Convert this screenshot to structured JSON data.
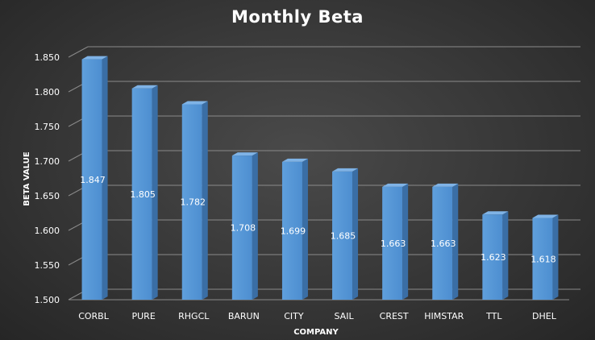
{
  "chart_data": {
    "type": "bar",
    "title": "Monthly Beta",
    "xlabel": "COMPANY",
    "ylabel": "BETA VALUE",
    "categories": [
      "CORBL",
      "PURE",
      "RHGCL",
      "BARUN",
      "CITY",
      "SAIL",
      "CREST",
      "HIMSTAR",
      "TTL",
      "DHEL"
    ],
    "values": [
      1.847,
      1.805,
      1.782,
      1.708,
      1.699,
      1.685,
      1.663,
      1.663,
      1.623,
      1.618
    ],
    "data_labels": [
      "1.847",
      "1.805",
      "1.782",
      "1.708",
      "1.699",
      "1.685",
      "1.663",
      "1.663",
      "1.623",
      "1.618"
    ],
    "ylim": [
      1.5,
      1.85
    ],
    "yticks": [
      "1.500",
      "1.550",
      "1.600",
      "1.650",
      "1.700",
      "1.750",
      "1.800",
      "1.850"
    ],
    "grid": true,
    "legend": "none",
    "style": "3d-column",
    "bar_color": "#5b9bd5",
    "background_color": "#3a3a3a"
  }
}
